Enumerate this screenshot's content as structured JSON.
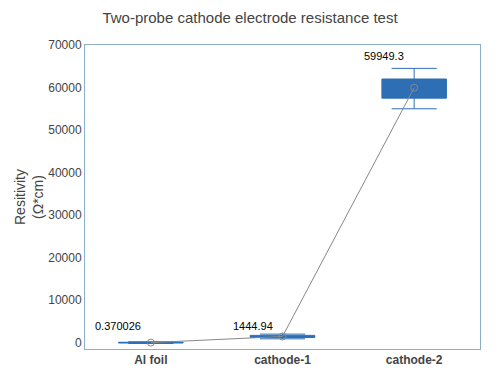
{
  "chart_data": {
    "type": "box",
    "title": "Two-probe cathode electrode resistance test",
    "ylabel": "Resitivity\n(Ω*cm)",
    "categories": [
      "Al foil",
      "cathode-1",
      "cathode-2"
    ],
    "series": [
      {
        "type": "box",
        "color": "#2d6eb5",
        "q1": [
          -80,
          1200,
          57500
        ],
        "median": [
          0.37,
          1444.94,
          59949.3
        ],
        "q3": [
          80,
          1700,
          62000
        ],
        "whisker_low": [
          -200,
          900,
          55000
        ],
        "whisker_high": [
          200,
          2000,
          64500
        ]
      },
      {
        "type": "line",
        "color": "#888888",
        "marker": "circle",
        "values": [
          0.37,
          1444.94,
          59949.3
        ]
      }
    ],
    "annotations": [
      {
        "text": "0.370026",
        "x": "Al foil",
        "y": 3800
      },
      {
        "text": "1444.94",
        "x": "cathode-1",
        "y": 3800
      },
      {
        "text": "59949.3",
        "x": "cathode-2",
        "y": 67500
      }
    ],
    "ylim": [
      -1500,
      70000
    ],
    "yticks": [
      0,
      10000,
      20000,
      30000,
      40000,
      50000,
      60000,
      70000
    ],
    "grid": false
  }
}
